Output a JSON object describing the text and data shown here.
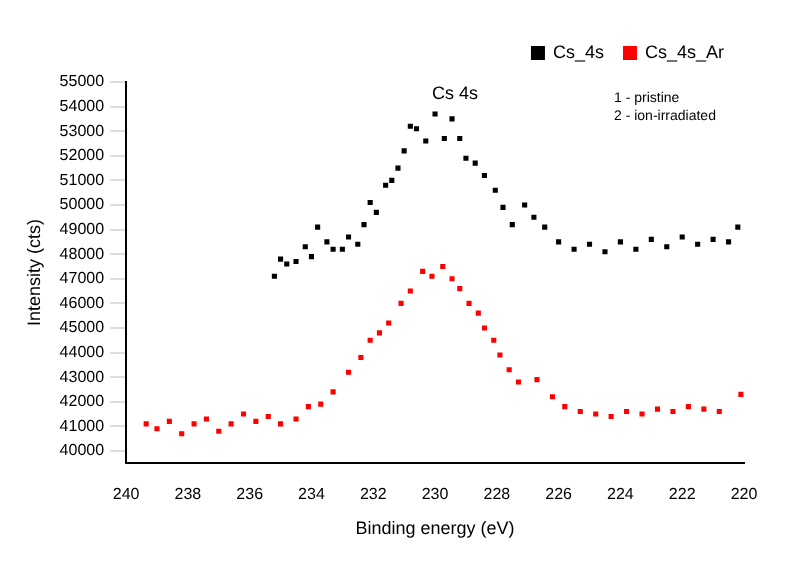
{
  "chart_data": {
    "type": "scatter",
    "xlabel": "Binding energy (eV)",
    "ylabel": "Intensity (cts)",
    "xlim": [
      240,
      220
    ],
    "xticks": [
      240,
      238,
      236,
      234,
      232,
      230,
      228,
      226,
      224,
      222,
      220
    ],
    "ylim": [
      39500,
      55000
    ],
    "yticks": [
      40000,
      41000,
      42000,
      43000,
      44000,
      45000,
      46000,
      47000,
      48000,
      49000,
      50000,
      51000,
      52000,
      53000,
      54000,
      55000
    ],
    "grid": false,
    "legend": "top right",
    "marker": "square",
    "title": "Cs 4s",
    "annotations": [
      "1 - pristine",
      "2 - ion-irradiated"
    ],
    "series": [
      {
        "name": "Cs_4s",
        "color": "#000000",
        "x": [
          235.2,
          235.0,
          234.8,
          234.5,
          234.2,
          234.0,
          233.8,
          233.5,
          233.3,
          233.0,
          232.8,
          232.5,
          232.3,
          232.1,
          231.9,
          231.6,
          231.4,
          231.2,
          231.0,
          230.8,
          230.6,
          230.3,
          230.0,
          229.7,
          229.45,
          229.2,
          229.0,
          228.7,
          228.4,
          228.05,
          227.8,
          227.5,
          227.1,
          226.8,
          226.45,
          226.0,
          225.5,
          225.0,
          224.5,
          224.0,
          223.5,
          223.0,
          222.5,
          222.0,
          221.5,
          221.0,
          220.5,
          220.2
        ],
        "values": [
          47100,
          47800,
          47600,
          47700,
          48300,
          47900,
          49100,
          48500,
          48200,
          48200,
          48700,
          48400,
          49200,
          50100,
          49700,
          50800,
          51000,
          51500,
          52200,
          53200,
          53100,
          52600,
          53700,
          52700,
          53500,
          52700,
          51900,
          51700,
          51200,
          50600,
          49900,
          49200,
          50000,
          49500,
          49100,
          48500,
          48200,
          48400,
          48100,
          48500,
          48200,
          48600,
          48300,
          48700,
          48400,
          48600,
          48500,
          49100
        ]
      },
      {
        "name": "Cs_4s_Ar",
        "color": "#ff0000",
        "x": [
          239.35,
          239.0,
          238.6,
          238.2,
          237.8,
          237.4,
          237.0,
          236.6,
          236.2,
          235.8,
          235.4,
          235.0,
          234.5,
          234.1,
          233.7,
          233.3,
          232.8,
          232.4,
          232.1,
          231.8,
          231.5,
          231.1,
          230.8,
          230.4,
          230.1,
          229.75,
          229.45,
          229.2,
          228.9,
          228.6,
          228.4,
          228.1,
          227.9,
          227.6,
          227.3,
          226.7,
          226.2,
          225.8,
          225.3,
          224.8,
          224.3,
          223.8,
          223.3,
          222.8,
          222.3,
          221.8,
          221.3,
          220.8,
          220.1
        ],
        "values": [
          41100,
          40900,
          41200,
          40700,
          41100,
          41300,
          40800,
          41100,
          41500,
          41200,
          41400,
          41100,
          41300,
          41800,
          41900,
          42400,
          43200,
          43800,
          44500,
          44800,
          45200,
          46000,
          46500,
          47300,
          47100,
          47500,
          47000,
          46600,
          46000,
          45600,
          45000,
          44500,
          43900,
          43300,
          42800,
          42900,
          42200,
          41800,
          41600,
          41500,
          41400,
          41600,
          41500,
          41700,
          41600,
          41800,
          41700,
          41600,
          42300
        ]
      }
    ]
  }
}
